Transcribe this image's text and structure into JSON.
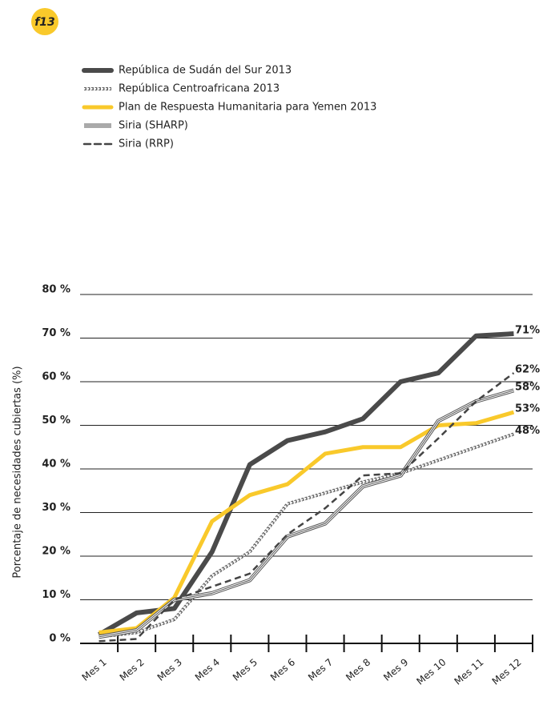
{
  "badge": "f13",
  "chart_data": {
    "type": "line",
    "y_label": "Porcentaje de necesidades cubiertas (%)",
    "categories": [
      "Mes 1",
      "Mes 2",
      "Mes 3",
      "Mes 4",
      "Mes 5",
      "Mes 6",
      "Mes 7",
      "Mes 8",
      "Mes 9",
      "Mes 10",
      "Mes 11",
      "Mes 12"
    ],
    "ylim": [
      0,
      80
    ],
    "yticks": [
      {
        "value": 0,
        "label": "0 %"
      },
      {
        "value": 10,
        "label": "10 %"
      },
      {
        "value": 20,
        "label": "20 %"
      },
      {
        "value": 30,
        "label": "30 %"
      },
      {
        "value": 40,
        "label": "40 %"
      },
      {
        "value": 50,
        "label": "50 %"
      },
      {
        "value": 60,
        "label": "60 %"
      },
      {
        "value": 70,
        "label": "70 %"
      },
      {
        "value": 80,
        "label": "80 %"
      }
    ],
    "grid": true,
    "series": [
      {
        "name": "República de Sudán del Sur  2013",
        "color": "#4a4a4a",
        "style": "solid",
        "width": 6,
        "values": [
          2,
          7,
          8,
          21,
          41,
          46.5,
          48.5,
          51.5,
          60,
          62,
          70.5,
          71
        ],
        "end_label": "71%"
      },
      {
        "name": "República Centroafricana 2013",
        "color": "#666666",
        "style": "diamond",
        "width": 1,
        "values": [
          1.5,
          2.5,
          5.5,
          15.5,
          21,
          32,
          34.5,
          37,
          39,
          42,
          45,
          48
        ],
        "end_label": "48%"
      },
      {
        "name": "Plan de Respuesta Humanitaria para Yemen 2013",
        "color": "#f9c92b",
        "style": "solid",
        "width": 5,
        "values": [
          2.5,
          3.5,
          10.5,
          28,
          34,
          36.5,
          43.5,
          45,
          45,
          50,
          50.5,
          53
        ],
        "end_label": "53%"
      },
      {
        "name": "Siria (SHARP)",
        "color": "#555555",
        "style": "triple",
        "width": 5,
        "values": [
          1.5,
          3,
          10,
          11.5,
          14.5,
          24.5,
          27.5,
          36,
          38.5,
          51,
          55.5,
          58
        ],
        "end_label": "58%"
      },
      {
        "name": "Siria (RRP)",
        "color": "#444444",
        "style": "dashed",
        "width": 2.5,
        "values": [
          0.5,
          1,
          10,
          13,
          16,
          25,
          31,
          38.5,
          39,
          47,
          55.5,
          62
        ],
        "end_label": "62%"
      }
    ]
  }
}
